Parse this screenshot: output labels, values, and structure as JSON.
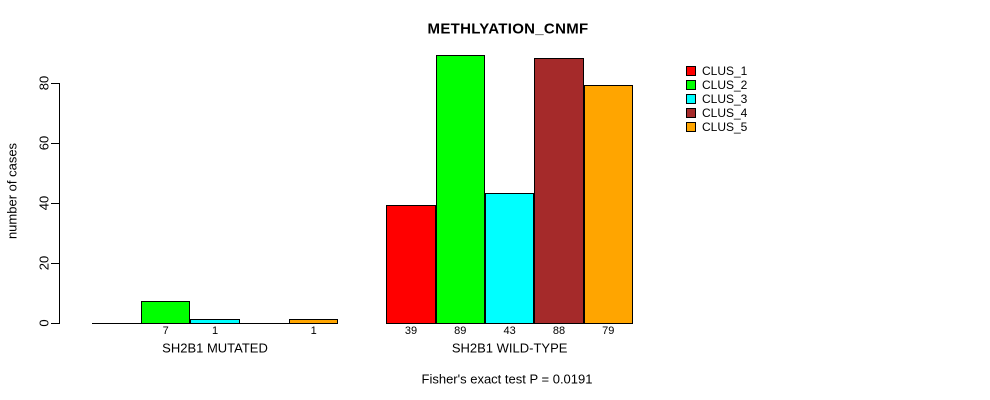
{
  "chart_data": {
    "type": "bar",
    "title": "METHLYATION_CNMF",
    "ylabel": "number of cases",
    "xlabel": "",
    "categories": [
      "SH2B1 MUTATED",
      "SH2B1 WILD-TYPE"
    ],
    "series": [
      {
        "name": "CLUS_1",
        "color": "#FF0000",
        "values": [
          0,
          39
        ]
      },
      {
        "name": "CLUS_2",
        "color": "#00FF00",
        "values": [
          7,
          89
        ]
      },
      {
        "name": "CLUS_3",
        "color": "#00FFFF",
        "values": [
          1,
          43
        ]
      },
      {
        "name": "CLUS_4",
        "color": "#A52A2A",
        "values": [
          0,
          88
        ]
      },
      {
        "name": "CLUS_5",
        "color": "#FFA500",
        "values": [
          1,
          79
        ]
      }
    ],
    "yticks": [
      0,
      20,
      40,
      60,
      80
    ],
    "ylim": [
      0,
      89
    ],
    "grid": false,
    "legend_position": "right",
    "bar_value_labels": "shown under each nonzero bar",
    "annotation": "Fisher's exact test P = 0.0191"
  },
  "colors": {
    "background": "#FFFFFF",
    "axis": "#000000",
    "text": "#000000"
  }
}
